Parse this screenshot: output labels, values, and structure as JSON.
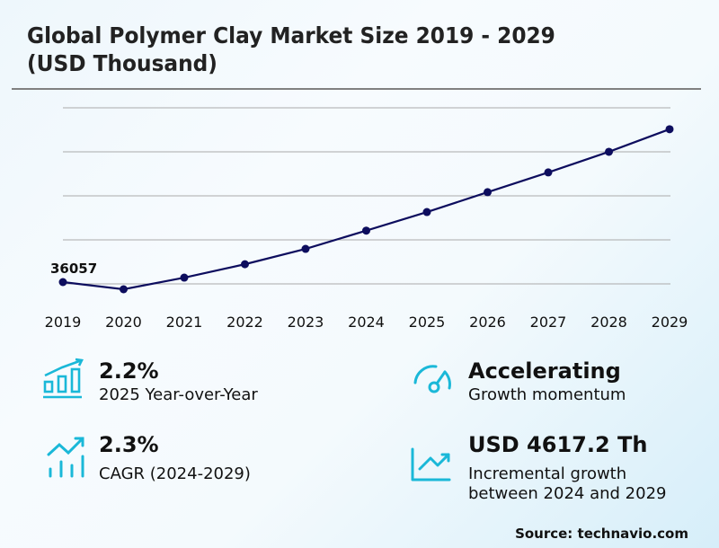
{
  "title_line1": "Global Polymer Clay Market Size 2019 - 2029",
  "title_line2": "(USD Thousand)",
  "chart_data": {
    "type": "line",
    "title": "Global Polymer Clay Market Size 2019 - 2029 (USD Thousand)",
    "xlabel": "",
    "ylabel": "USD Thousand",
    "categories": [
      "2019",
      "2020",
      "2021",
      "2022",
      "2023",
      "2024",
      "2025",
      "2026",
      "2027",
      "2028",
      "2029"
    ],
    "series": [
      {
        "name": "Market Size",
        "values": [
          36057,
          35730,
          36260,
          36870,
          37570,
          38400,
          39245,
          40150,
          41050,
          41990,
          43017
        ]
      }
    ],
    "annotations": [
      {
        "x": "2019",
        "text": "36057"
      }
    ],
    "grid": true,
    "legend": "none",
    "line_color": "#0d0d5e"
  },
  "kpis": [
    {
      "value": "2.2%",
      "label": "2025 Year-over-Year",
      "icon": "bar-chart-arrow-icon"
    },
    {
      "value": "Accelerating",
      "label": "Growth momentum",
      "icon": "speedometer-icon"
    },
    {
      "value": "2.3%",
      "label": "CAGR (2024-2029)",
      "icon": "trend-bars-icon"
    },
    {
      "value": "USD 4617.2 Th",
      "label_line1": "Incremental growth",
      "label_line2": "between 2024 and 2029",
      "icon": "line-chart-icon"
    }
  ],
  "source": "Source: technavio.com",
  "colors": {
    "accent": "#1ab8d8",
    "line": "#0d0d5e",
    "grid": "#aaaaaa"
  }
}
